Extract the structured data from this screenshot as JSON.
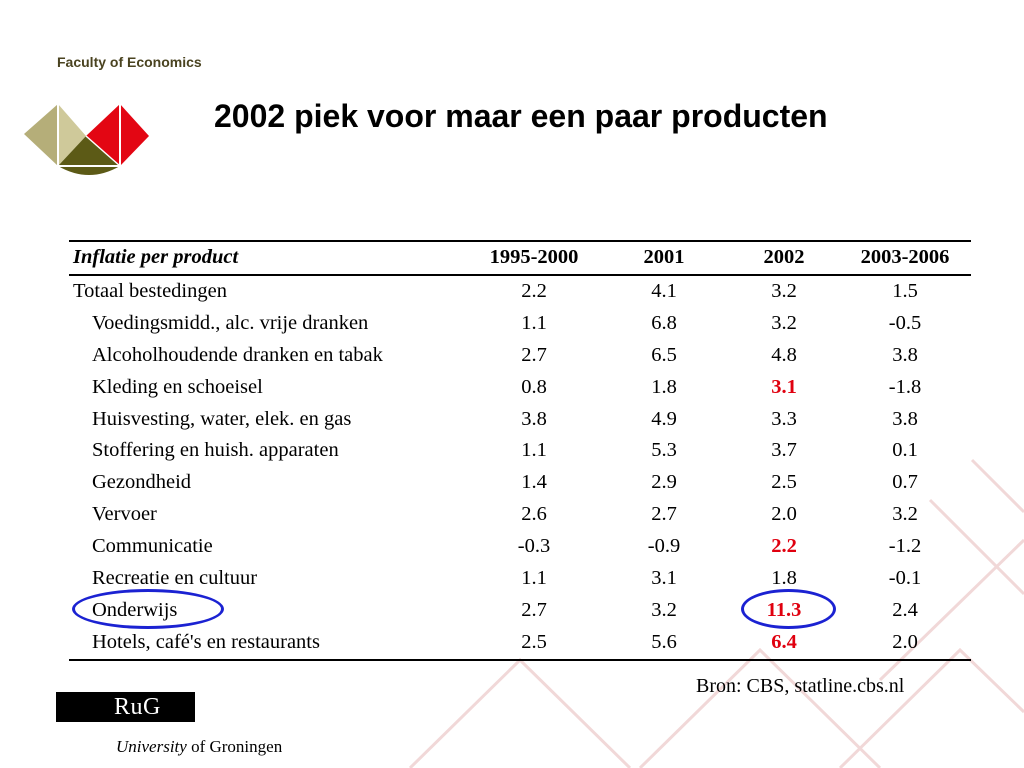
{
  "header": {
    "faculty": "Faculty of Economics",
    "title": "2002 piek voor maar een paar producten"
  },
  "table": {
    "columns": [
      "Inflatie per product",
      "1995-2000",
      "2001",
      "2002",
      "2003-2006"
    ],
    "rows": [
      {
        "label": "Totaal bestedingen",
        "indent": false,
        "values": [
          "2.2",
          "4.1",
          "3.2",
          "1.5"
        ],
        "highlight_2002": false
      },
      {
        "label": "Voedingsmidd., alc. vrije dranken",
        "indent": true,
        "values": [
          "1.1",
          "6.8",
          "3.2",
          "-0.5"
        ],
        "highlight_2002": false
      },
      {
        "label": "Alcoholhoudende dranken en tabak",
        "indent": true,
        "values": [
          "2.7",
          "6.5",
          "4.8",
          "3.8"
        ],
        "highlight_2002": false
      },
      {
        "label": "Kleding en schoeisel",
        "indent": true,
        "values": [
          "0.8",
          "1.8",
          "3.1",
          "-1.8"
        ],
        "highlight_2002": true
      },
      {
        "label": "Huisvesting, water, elek. en gas",
        "indent": true,
        "values": [
          "3.8",
          "4.9",
          "3.3",
          "3.8"
        ],
        "highlight_2002": false
      },
      {
        "label": "Stoffering en huish. apparaten",
        "indent": true,
        "values": [
          "1.1",
          "5.3",
          "3.7",
          "0.1"
        ],
        "highlight_2002": false
      },
      {
        "label": "Gezondheid",
        "indent": true,
        "values": [
          "1.4",
          "2.9",
          "2.5",
          "0.7"
        ],
        "highlight_2002": false
      },
      {
        "label": "Vervoer",
        "indent": true,
        "values": [
          "2.6",
          "2.7",
          "2.0",
          "3.2"
        ],
        "highlight_2002": false
      },
      {
        "label": "Communicatie",
        "indent": true,
        "values": [
          "-0.3",
          "-0.9",
          "2.2",
          "-1.2"
        ],
        "highlight_2002": true
      },
      {
        "label": "Recreatie en cultuur",
        "indent": true,
        "values": [
          "1.1",
          "3.1",
          "1.8",
          "-0.1"
        ],
        "highlight_2002": false
      },
      {
        "label": "Onderwijs",
        "indent": true,
        "values": [
          "2.7",
          "3.2",
          "11.3",
          "2.4"
        ],
        "highlight_2002": true
      },
      {
        "label": "Hotels, café's en restaurants",
        "indent": true,
        "values": [
          "2.5",
          "5.6",
          "6.4",
          "2.0"
        ],
        "highlight_2002": true
      }
    ]
  },
  "source": "Bron: CBS, statline.cbs.nl",
  "footer": {
    "logo_text": "RuG",
    "university_italic": "University",
    "university_rest": " of Groningen"
  },
  "colors": {
    "highlight": "#e0000f",
    "circle": "#1b22d2",
    "logo_tan": "#b5ae79",
    "logo_red": "#e30613",
    "logo_olive": "#5c5a16"
  }
}
